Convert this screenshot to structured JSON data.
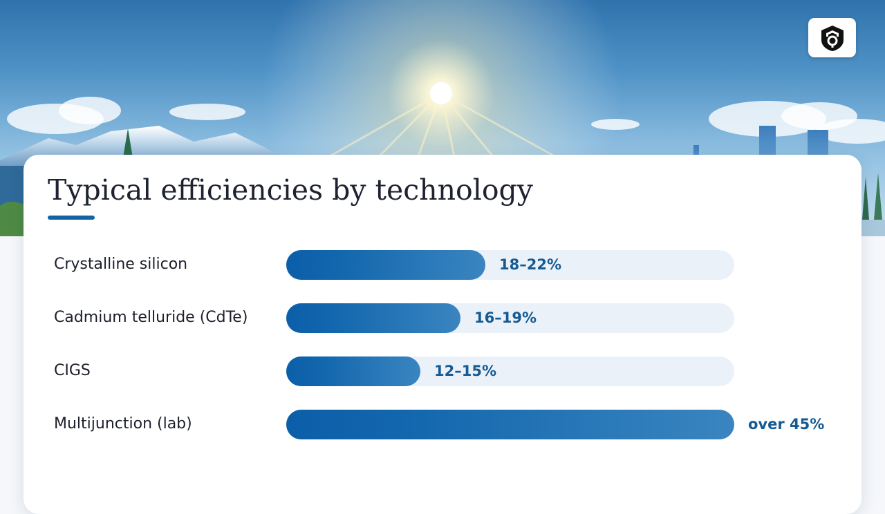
{
  "chart_data": {
    "type": "bar",
    "orientation": "horizontal",
    "title": "Typical efficiencies by technology",
    "xlim": [
      0,
      45
    ],
    "categories": [
      "Crystalline silicon",
      "Cadmium telluride (CdTe)",
      "CIGS",
      "Multijunction (lab)"
    ],
    "values": [
      20,
      17.5,
      13.5,
      45
    ],
    "value_labels": [
      "18–22%",
      "16–19%",
      "12–15%",
      "over 45%"
    ],
    "colors": {
      "bar": "#1464a5",
      "track": "#eaf1f8",
      "value_text": "#165a93",
      "accent": "#1464a5"
    }
  },
  "header": {
    "logo_icon": "shield-logo-icon"
  }
}
